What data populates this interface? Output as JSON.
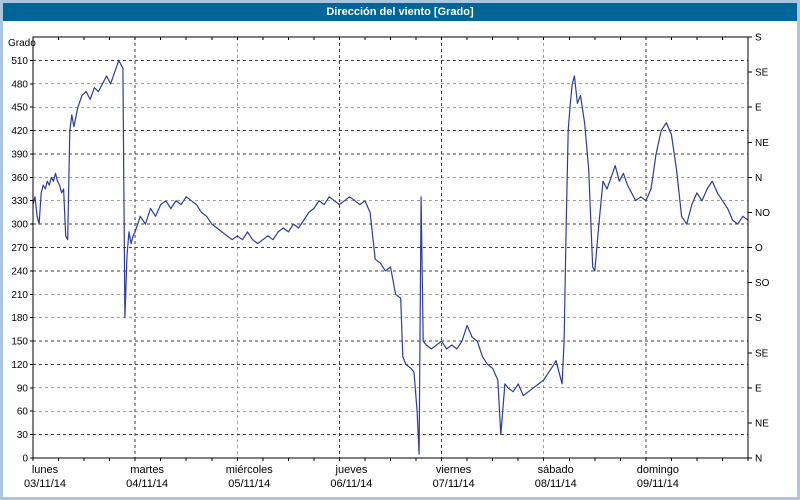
{
  "window": {
    "title": "Dirección del viento [Grado]"
  },
  "colors": {
    "frame": "#aac5df",
    "titlebar_bg": "#006699",
    "titlebar_text": "#ffffff",
    "plot_bg": "#ffffff",
    "grid": "#404040",
    "axis": "#000000",
    "line": "#2d3c9b"
  },
  "chart_data": {
    "type": "line",
    "title": "Dirección del viento [Grado]",
    "ylabel_left": "Grado",
    "ylim": [
      0,
      540
    ],
    "xlim_days": [
      0,
      7
    ],
    "grid": "dashed",
    "legend": "none",
    "y_left_ticks": [
      0,
      30,
      60,
      90,
      120,
      150,
      180,
      210,
      240,
      270,
      300,
      330,
      360,
      390,
      420,
      450,
      480,
      510
    ],
    "y_right_ticks": [
      {
        "value": 0,
        "label": "N"
      },
      {
        "value": 45,
        "label": "NE"
      },
      {
        "value": 90,
        "label": "E"
      },
      {
        "value": 135,
        "label": "SE"
      },
      {
        "value": 180,
        "label": "S"
      },
      {
        "value": 225,
        "label": "SO"
      },
      {
        "value": 270,
        "label": "O"
      },
      {
        "value": 315,
        "label": "NO"
      },
      {
        "value": 360,
        "label": "N"
      },
      {
        "value": 405,
        "label": "NE"
      },
      {
        "value": 450,
        "label": "E"
      },
      {
        "value": 495,
        "label": "SE"
      },
      {
        "value": 540,
        "label": "S"
      }
    ],
    "x_days": [
      {
        "name": "lunes",
        "date": "03/11/14"
      },
      {
        "name": "martes",
        "date": "04/11/14"
      },
      {
        "name": "miércoles",
        "date": "05/11/14"
      },
      {
        "name": "jueves",
        "date": "06/11/14"
      },
      {
        "name": "viernes",
        "date": "07/11/14"
      },
      {
        "name": "sábado",
        "date": "08/11/14"
      },
      {
        "name": "domingo",
        "date": "09/11/14"
      }
    ],
    "series": [
      {
        "name": "Dirección del viento",
        "unit": "Grado",
        "color": "#2d3c9b",
        "points": [
          [
            0.0,
            325
          ],
          [
            0.02,
            335
          ],
          [
            0.04,
            310
          ],
          [
            0.06,
            300
          ],
          [
            0.08,
            340
          ],
          [
            0.1,
            350
          ],
          [
            0.12,
            345
          ],
          [
            0.14,
            355
          ],
          [
            0.16,
            350
          ],
          [
            0.18,
            360
          ],
          [
            0.2,
            355
          ],
          [
            0.22,
            365
          ],
          [
            0.24,
            355
          ],
          [
            0.26,
            350
          ],
          [
            0.28,
            340
          ],
          [
            0.3,
            345
          ],
          [
            0.32,
            285
          ],
          [
            0.34,
            280
          ],
          [
            0.36,
            420
          ],
          [
            0.38,
            440
          ],
          [
            0.4,
            425
          ],
          [
            0.44,
            450
          ],
          [
            0.48,
            465
          ],
          [
            0.52,
            470
          ],
          [
            0.56,
            460
          ],
          [
            0.6,
            475
          ],
          [
            0.64,
            470
          ],
          [
            0.68,
            480
          ],
          [
            0.72,
            490
          ],
          [
            0.76,
            480
          ],
          [
            0.8,
            495
          ],
          [
            0.84,
            510
          ],
          [
            0.86,
            505
          ],
          [
            0.88,
            500
          ],
          [
            0.9,
            180
          ],
          [
            0.92,
            260
          ],
          [
            0.94,
            290
          ],
          [
            0.96,
            275
          ],
          [
            0.98,
            285
          ],
          [
            1.0,
            290
          ],
          [
            1.05,
            310
          ],
          [
            1.1,
            300
          ],
          [
            1.15,
            320
          ],
          [
            1.2,
            310
          ],
          [
            1.25,
            325
          ],
          [
            1.3,
            330
          ],
          [
            1.35,
            320
          ],
          [
            1.4,
            330
          ],
          [
            1.45,
            325
          ],
          [
            1.5,
            335
          ],
          [
            1.55,
            330
          ],
          [
            1.6,
            325
          ],
          [
            1.65,
            315
          ],
          [
            1.7,
            310
          ],
          [
            1.75,
            300
          ],
          [
            1.8,
            295
          ],
          [
            1.85,
            290
          ],
          [
            1.9,
            285
          ],
          [
            1.95,
            280
          ],
          [
            2.0,
            285
          ],
          [
            2.05,
            280
          ],
          [
            2.1,
            290
          ],
          [
            2.15,
            280
          ],
          [
            2.2,
            275
          ],
          [
            2.25,
            280
          ],
          [
            2.3,
            285
          ],
          [
            2.35,
            280
          ],
          [
            2.4,
            290
          ],
          [
            2.45,
            295
          ],
          [
            2.5,
            290
          ],
          [
            2.55,
            300
          ],
          [
            2.6,
            295
          ],
          [
            2.65,
            305
          ],
          [
            2.7,
            315
          ],
          [
            2.75,
            320
          ],
          [
            2.8,
            330
          ],
          [
            2.85,
            325
          ],
          [
            2.9,
            335
          ],
          [
            2.95,
            330
          ],
          [
            3.0,
            325
          ],
          [
            3.05,
            330
          ],
          [
            3.1,
            335
          ],
          [
            3.15,
            330
          ],
          [
            3.2,
            325
          ],
          [
            3.25,
            330
          ],
          [
            3.3,
            315
          ],
          [
            3.35,
            255
          ],
          [
            3.4,
            250
          ],
          [
            3.45,
            240
          ],
          [
            3.5,
            245
          ],
          [
            3.55,
            210
          ],
          [
            3.6,
            205
          ],
          [
            3.62,
            130
          ],
          [
            3.65,
            120
          ],
          [
            3.7,
            115
          ],
          [
            3.73,
            110
          ],
          [
            3.76,
            60
          ],
          [
            3.78,
            5
          ],
          [
            3.8,
            335
          ],
          [
            3.82,
            150
          ],
          [
            3.85,
            145
          ],
          [
            3.9,
            140
          ],
          [
            3.95,
            145
          ],
          [
            4.0,
            150
          ],
          [
            4.05,
            140
          ],
          [
            4.1,
            145
          ],
          [
            4.15,
            140
          ],
          [
            4.2,
            150
          ],
          [
            4.25,
            170
          ],
          [
            4.3,
            155
          ],
          [
            4.35,
            150
          ],
          [
            4.4,
            130
          ],
          [
            4.45,
            120
          ],
          [
            4.5,
            115
          ],
          [
            4.55,
            100
          ],
          [
            4.58,
            30
          ],
          [
            4.62,
            95
          ],
          [
            4.65,
            90
          ],
          [
            4.7,
            85
          ],
          [
            4.75,
            95
          ],
          [
            4.8,
            80
          ],
          [
            4.85,
            85
          ],
          [
            4.9,
            90
          ],
          [
            4.95,
            95
          ],
          [
            5.0,
            100
          ],
          [
            5.05,
            110
          ],
          [
            5.1,
            120
          ],
          [
            5.12,
            125
          ],
          [
            5.15,
            110
          ],
          [
            5.18,
            95
          ],
          [
            5.2,
            150
          ],
          [
            5.22,
            300
          ],
          [
            5.24,
            420
          ],
          [
            5.26,
            455
          ],
          [
            5.28,
            480
          ],
          [
            5.3,
            490
          ],
          [
            5.33,
            455
          ],
          [
            5.36,
            465
          ],
          [
            5.4,
            430
          ],
          [
            5.44,
            370
          ],
          [
            5.48,
            245
          ],
          [
            5.5,
            240
          ],
          [
            5.54,
            300
          ],
          [
            5.58,
            355
          ],
          [
            5.62,
            345
          ],
          [
            5.66,
            360
          ],
          [
            5.7,
            375
          ],
          [
            5.74,
            355
          ],
          [
            5.78,
            365
          ],
          [
            5.82,
            350
          ],
          [
            5.86,
            340
          ],
          [
            5.9,
            330
          ],
          [
            5.95,
            335
          ],
          [
            6.0,
            330
          ],
          [
            6.05,
            345
          ],
          [
            6.1,
            390
          ],
          [
            6.15,
            420
          ],
          [
            6.2,
            430
          ],
          [
            6.25,
            415
          ],
          [
            6.3,
            370
          ],
          [
            6.35,
            310
          ],
          [
            6.4,
            300
          ],
          [
            6.45,
            325
          ],
          [
            6.5,
            340
          ],
          [
            6.55,
            330
          ],
          [
            6.6,
            345
          ],
          [
            6.65,
            355
          ],
          [
            6.7,
            340
          ],
          [
            6.75,
            330
          ],
          [
            6.8,
            320
          ],
          [
            6.85,
            305
          ],
          [
            6.9,
            300
          ],
          [
            6.95,
            310
          ],
          [
            7.0,
            305
          ]
        ]
      }
    ]
  }
}
